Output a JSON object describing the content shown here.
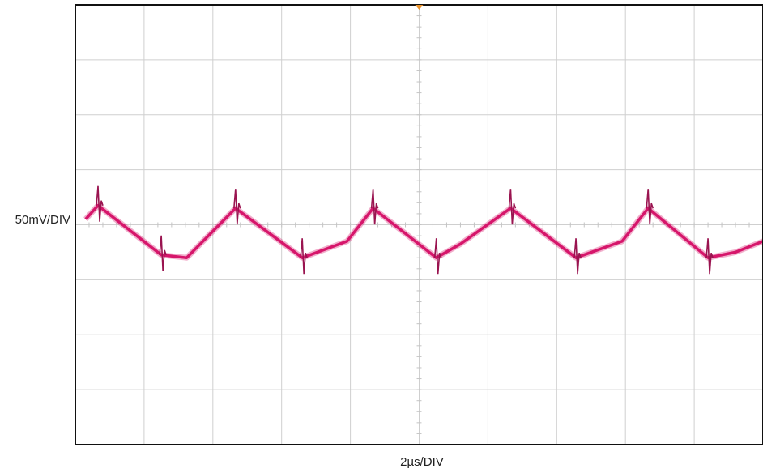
{
  "chart_data": {
    "type": "line",
    "title": "",
    "xlabel": "2µs/DIV",
    "ylabel": "50mV/DIV",
    "x_unit": "divisions",
    "y_unit": "divisions",
    "xlim": [
      0,
      10
    ],
    "ylim": [
      -4,
      4
    ],
    "grid": true,
    "grid_divisions": {
      "x": 10,
      "y": 8
    },
    "series": [
      {
        "color": "#d6166b",
        "x": [
          0.15,
          0.33,
          1.25,
          1.62,
          2.33,
          3.3,
          3.95,
          4.33,
          5.25,
          5.6,
          6.33,
          7.28,
          7.95,
          8.33,
          9.2,
          9.6,
          10.0
        ],
        "y": [
          0.1,
          0.35,
          -0.55,
          -0.6,
          0.3,
          -0.6,
          -0.3,
          0.3,
          -0.6,
          -0.35,
          0.3,
          -0.6,
          -0.3,
          0.3,
          -0.6,
          -0.5,
          -0.3
        ]
      }
    ],
    "spikes_x": [
      0.33,
      1.25,
      2.33,
      3.3,
      4.33,
      5.25,
      6.33,
      7.28,
      8.33,
      9.2
    ]
  }
}
